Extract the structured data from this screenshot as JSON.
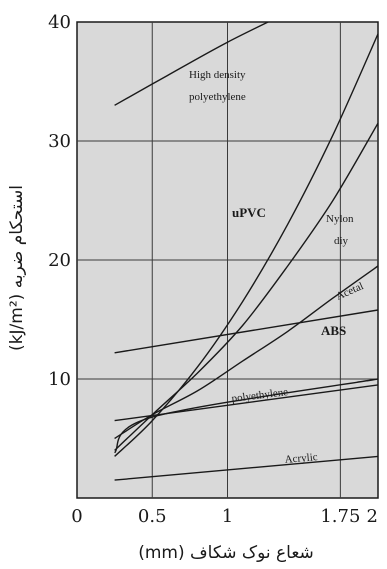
{
  "chart_data": {
    "type": "line",
    "xlabel": "شعاع نوک شکاف (mm)",
    "ylabel": "استحکام ضربه  (kJ/m²)",
    "xlim": [
      0,
      2
    ],
    "ylim": [
      0,
      40
    ],
    "x_ticks": [
      {
        "value": 0,
        "label": "0"
      },
      {
        "value": 0.5,
        "label": "0.5"
      },
      {
        "value": 1.0,
        "label": "1"
      },
      {
        "value": 1.75,
        "label": "1.75"
      },
      {
        "value": 2.0,
        "label": "2"
      }
    ],
    "y_ticks": [
      {
        "value": 10,
        "label": "10"
      },
      {
        "value": 20,
        "label": "20"
      },
      {
        "value": 30,
        "label": "30"
      },
      {
        "value": 40,
        "label": "40"
      }
    ],
    "grid": true,
    "series": [
      {
        "name": "High density polyethylene",
        "x": [
          0.25,
          0.6,
          1.0,
          1.4
        ],
        "y": [
          33,
          35.5,
          38.3,
          40.8
        ]
      },
      {
        "name": "uPVC",
        "x": [
          0.25,
          0.5,
          0.8,
          1.1,
          1.4,
          1.7,
          2.0
        ],
        "y": [
          3.5,
          6.5,
          11.0,
          16.5,
          23.0,
          30.5,
          39.0
        ]
      },
      {
        "name": "Nylon dry",
        "x": [
          0.25,
          0.5,
          0.8,
          1.1,
          1.4,
          1.7,
          2.0
        ],
        "y": [
          4.0,
          7.0,
          10.5,
          14.5,
          19.5,
          25.0,
          31.5
        ]
      },
      {
        "name": "Acetal",
        "x": [
          0.25,
          0.5,
          0.8,
          1.1,
          1.4,
          1.7,
          2.0
        ],
        "y": [
          5.0,
          7.0,
          9.0,
          11.5,
          14.0,
          16.8,
          19.5
        ]
      },
      {
        "name": "ABS",
        "x": [
          0.25,
          2.0
        ],
        "y": [
          12.2,
          15.8
        ]
      },
      {
        "name": "polyethylene",
        "x": [
          0.25,
          0.5,
          2.0
        ],
        "y": [
          3.8,
          6.8,
          10.0
        ]
      },
      {
        "name": "Acrylic",
        "x": [
          0.25,
          2.0
        ],
        "y": [
          1.5,
          3.5
        ]
      },
      {
        "name": "",
        "x": [
          0.25,
          2.0
        ],
        "y": [
          6.5,
          9.5
        ]
      }
    ],
    "annotations": [
      {
        "text": "High density",
        "series": "High density polyethylene"
      },
      {
        "text": "polyethylene",
        "series": "High density polyethylene"
      },
      {
        "text": "uPVC",
        "series": "uPVC"
      },
      {
        "text": "Nylon",
        "series": "Nylon dry"
      },
      {
        "text": "diy",
        "series": "Nylon dry"
      },
      {
        "text": "Acetal",
        "series": "Acetal"
      },
      {
        "text": "ABS",
        "series": "ABS"
      },
      {
        "text": "polyethylene",
        "series": "polyethylene"
      },
      {
        "text": "Acrylic",
        "series": "Acrylic"
      }
    ],
    "colors": {
      "plot_background": "#d9d9d9",
      "line": "#1a1a1a",
      "grid": "#3a3a3a"
    }
  }
}
